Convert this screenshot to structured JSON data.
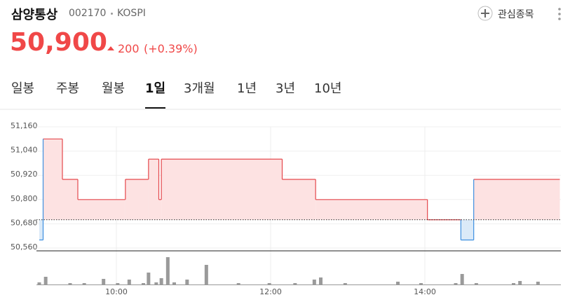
{
  "header": {
    "name": "삼양통상",
    "code": "002170",
    "market": "KOSPI",
    "watch": "관심종목",
    "price": "50,900",
    "change": "200",
    "change_pct": "(+0.39%)"
  },
  "tabs": [
    "일봉",
    "주봉",
    "월봉",
    "1일",
    "3개월",
    "1년",
    "3년",
    "10년"
  ],
  "selected_tab": 3,
  "chart_data": [
    {
      "type": "step-area",
      "x": [
        "09:00",
        "09:03",
        "09:18",
        "09:30",
        "10:07",
        "10:25",
        "10:33",
        "10:35",
        "12:09",
        "12:35",
        "14:02",
        "14:28",
        "14:38"
      ],
      "values": [
        50600,
        51100,
        50900,
        50800,
        50900,
        51000,
        50800,
        51000,
        50900,
        50800,
        50700,
        50600,
        50900
      ],
      "reference": 50700,
      "color": "#e5484d",
      "fill": "#fde2e2",
      "color_down": "#3d8fe0",
      "fill_down": "#dbeaf8",
      "xlim": [
        "09:00",
        "15:45"
      ],
      "ylim": [
        50560,
        51160
      ],
      "yticks": [
        {
          "value": 50560,
          "label": "50,560"
        },
        {
          "value": 50680,
          "label": "50,680"
        },
        {
          "value": 50800,
          "label": "50,800"
        },
        {
          "value": 50920,
          "label": "50,920"
        },
        {
          "value": 51040,
          "label": "51,040"
        },
        {
          "value": 51160,
          "label": "51,160"
        }
      ],
      "xticks": [
        "10:00",
        "12:00",
        "14:00"
      ],
      "grid": true
    },
    {
      "type": "bar",
      "x": [
        "09:00",
        "09:05",
        "09:24",
        "09:35",
        "09:50",
        "10:01",
        "10:10",
        "10:21",
        "10:25",
        "10:31",
        "10:35",
        "10:40",
        "10:45",
        "10:55",
        "11:10",
        "11:35",
        "11:59",
        "12:19",
        "12:34",
        "12:39",
        "12:58",
        "13:39",
        "13:57",
        "14:24",
        "14:29",
        "14:40",
        "15:09",
        "15:14",
        "15:28"
      ],
      "values": [
        3,
        11,
        2,
        2,
        8,
        2,
        7,
        2,
        17,
        3,
        9,
        39,
        3,
        7,
        28,
        2,
        2,
        2,
        7,
        10,
        2,
        4,
        2,
        2,
        15,
        2,
        2,
        5,
        4
      ],
      "color": "#9a9a9a",
      "xlim": [
        "09:00",
        "15:45"
      ],
      "ylim": [
        0,
        42
      ],
      "xticks": [
        "10:00",
        "12:00",
        "14:00"
      ]
    }
  ]
}
